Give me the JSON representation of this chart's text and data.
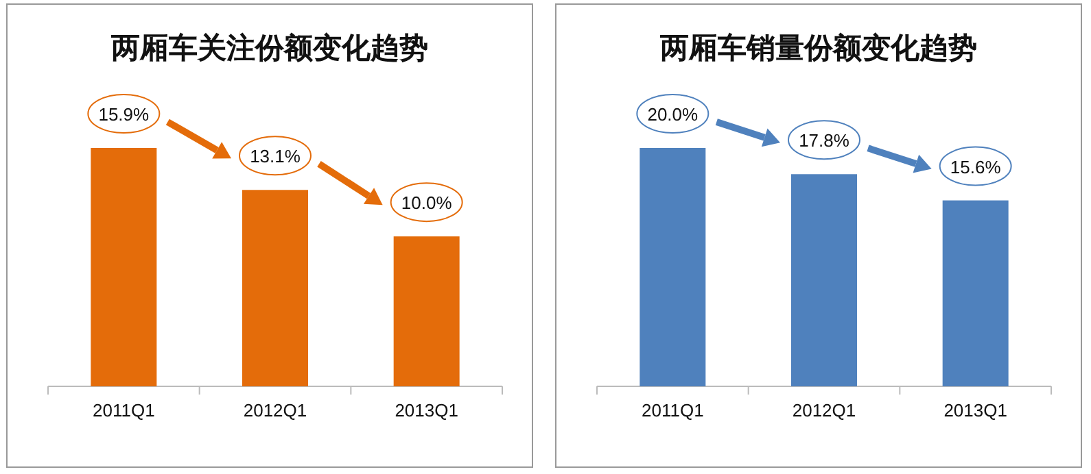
{
  "chart_data": [
    {
      "type": "bar",
      "title": "两厢车关注份额变化趋势",
      "categories": [
        "2011Q1",
        "2012Q1",
        "2013Q1"
      ],
      "values": [
        15.9,
        13.1,
        10.0
      ],
      "value_labels": [
        "15.9%",
        "13.1%",
        "10.0%"
      ],
      "color": "#e46c0a"
    },
    {
      "type": "bar",
      "title": "两厢车销量份额变化趋势",
      "categories": [
        "2011Q1",
        "2012Q1",
        "2013Q1"
      ],
      "values": [
        20.0,
        17.8,
        15.6
      ],
      "value_labels": [
        "20.0%",
        "17.8%",
        "15.6%"
      ],
      "color": "#4f81bd"
    }
  ]
}
